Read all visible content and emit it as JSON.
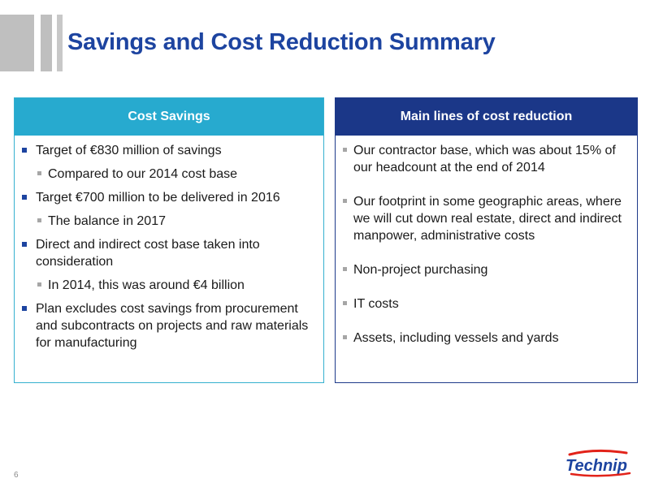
{
  "header": {
    "title": "Savings and Cost Reduction Summary"
  },
  "left_panel": {
    "heading": "Cost Savings",
    "items": [
      {
        "text": "Target of €830 million of savings",
        "sub": [
          "Compared to our 2014 cost base"
        ]
      },
      {
        "text": "Target €700 million to be delivered in 2016",
        "sub": [
          "The balance in 2017"
        ]
      },
      {
        "text": "Direct and indirect cost base taken into consideration",
        "sub": [
          "In 2014, this was around €4 billion"
        ]
      },
      {
        "text": "Plan excludes cost savings from procurement and subcontracts on projects and raw materials for manufacturing",
        "sub": []
      }
    ]
  },
  "right_panel": {
    "heading": "Main lines of cost reduction",
    "items": [
      {
        "text": "Our contractor base, which was about 15% of our headcount at the end of 2014"
      },
      {
        "text": "Our footprint in some geographic areas, where we will cut down real estate, direct and indirect manpower, administrative costs"
      },
      {
        "text": "Non-project purchasing"
      },
      {
        "text": "IT costs"
      },
      {
        "text": "Assets, including vessels and yards"
      }
    ]
  },
  "footer": {
    "page_number": "6",
    "logo_text": "Technip"
  },
  "colors": {
    "title": "#1d44a0",
    "left_header": "#27aacf",
    "right_header": "#1b3788",
    "logo_red": "#e2231a"
  }
}
